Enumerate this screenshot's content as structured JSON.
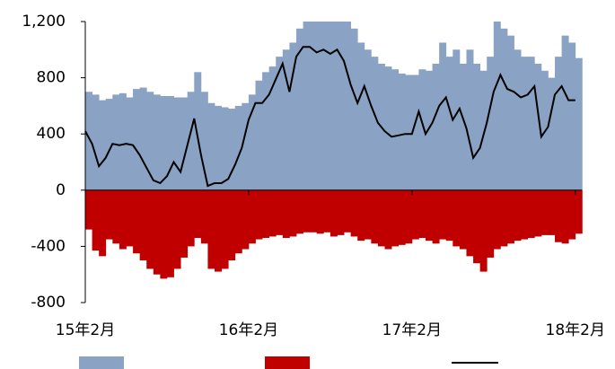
{
  "chart_data": {
    "type": "bar-line",
    "categories": [
      "15年2月",
      null,
      null,
      null,
      null,
      null,
      null,
      null,
      null,
      null,
      null,
      null,
      null,
      null,
      null,
      null,
      null,
      null,
      null,
      null,
      null,
      null,
      null,
      null,
      "16年2月",
      null,
      null,
      null,
      null,
      null,
      null,
      null,
      null,
      null,
      null,
      null,
      null,
      null,
      null,
      null,
      null,
      null,
      null,
      null,
      null,
      null,
      null,
      null,
      "17年2月",
      null,
      null,
      null,
      null,
      null,
      null,
      null,
      null,
      null,
      null,
      null,
      null,
      null,
      null,
      null,
      null,
      null,
      null,
      null,
      null,
      null,
      null,
      null,
      "18年2月"
    ],
    "series": [
      {
        "type": "bar",
        "color": "#8aa3c4",
        "values": [
          700,
          680,
          640,
          650,
          680,
          690,
          660,
          720,
          730,
          700,
          680,
          670,
          670,
          660,
          660,
          700,
          840,
          700,
          620,
          600,
          590,
          580,
          600,
          620,
          680,
          780,
          840,
          880,
          950,
          1000,
          1050,
          1150,
          1200,
          1200,
          1200,
          1200,
          1200,
          1200,
          1200,
          1150,
          1050,
          1000,
          950,
          900,
          880,
          860,
          830,
          820,
          820,
          860,
          850,
          900,
          1050,
          950,
          1000,
          900,
          1000,
          900,
          850,
          950,
          1200,
          1150,
          1100,
          1000,
          950,
          950,
          900,
          850,
          800,
          950,
          1100,
          1050,
          940
        ]
      },
      {
        "type": "bar",
        "color": "#c00000",
        "values": [
          -280,
          -430,
          -470,
          -350,
          -380,
          -420,
          -400,
          -450,
          -500,
          -560,
          -600,
          -630,
          -620,
          -560,
          -480,
          -400,
          -340,
          -380,
          -560,
          -580,
          -560,
          -500,
          -450,
          -420,
          -380,
          -350,
          -340,
          -330,
          -320,
          -340,
          -330,
          -310,
          -300,
          -300,
          -310,
          -300,
          -330,
          -320,
          -300,
          -330,
          -360,
          -350,
          -380,
          -400,
          -420,
          -400,
          -390,
          -380,
          -350,
          -340,
          -360,
          -380,
          -350,
          -360,
          -400,
          -420,
          -470,
          -520,
          -580,
          -480,
          -420,
          -400,
          -380,
          -360,
          -350,
          -340,
          -330,
          -320,
          -320,
          -370,
          -380,
          -350,
          -310
        ]
      },
      {
        "type": "line",
        "color": "#000000",
        "values": [
          420,
          330,
          170,
          230,
          330,
          320,
          330,
          320,
          250,
          160,
          70,
          50,
          100,
          200,
          130,
          320,
          510,
          250,
          30,
          50,
          50,
          80,
          180,
          300,
          500,
          620,
          620,
          680,
          790,
          900,
          700,
          950,
          1020,
          1020,
          980,
          1000,
          970,
          1000,
          920,
          750,
          620,
          740,
          600,
          480,
          420,
          380,
          390,
          400,
          400,
          560,
          400,
          480,
          600,
          660,
          500,
          580,
          440,
          230,
          300,
          480,
          700,
          820,
          720,
          700,
          660,
          680,
          740,
          380,
          450,
          680,
          740,
          640,
          640
        ]
      }
    ],
    "ylim": [
      -800,
      1200
    ],
    "yticks": [
      -800,
      -400,
      0,
      400,
      800,
      {
        "value": 1200,
        "label": "1,200"
      }
    ]
  }
}
